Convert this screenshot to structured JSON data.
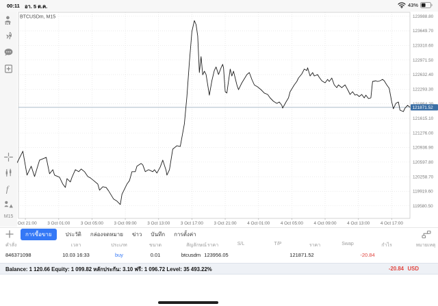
{
  "status_bar": {
    "time": "00:11",
    "date": "อา. 5 ต.ค.",
    "battery_percent": "43%"
  },
  "sidebar": {
    "icons": [
      "account-icon",
      "rocket-icon",
      "chat-icon",
      "new-order-icon",
      "crosshair-icon",
      "indicator-icon",
      "function-icon",
      "objects-icon"
    ],
    "timeframe": "M15"
  },
  "chart": {
    "symbol_label": "BTCUSDm, M15"
  },
  "chart_data": {
    "type": "line",
    "title": "BTCUSDm, M15",
    "xlabel": "",
    "ylabel": "Price",
    "grid": true,
    "xlim": [
      20.17,
      67.19
    ],
    "ylim": [
      119290,
      124080
    ],
    "x_unit": "hours since 2 Oct 00:00",
    "x_ticks": [
      {
        "t": 21,
        "label": "2 Oct 21:00"
      },
      {
        "t": 25,
        "label": "3 Oct 01:00"
      },
      {
        "t": 29,
        "label": "3 Oct 05:00"
      },
      {
        "t": 33,
        "label": "3 Oct 09:00"
      },
      {
        "t": 37,
        "label": "3 Oct 13:00"
      },
      {
        "t": 41,
        "label": "3 Oct 17:00"
      },
      {
        "t": 45,
        "label": "3 Oct 21:00"
      },
      {
        "t": 49,
        "label": "4 Oct 01:00"
      },
      {
        "t": 53,
        "label": "4 Oct 05:00"
      },
      {
        "t": 57,
        "label": "4 Oct 09:00"
      },
      {
        "t": 61,
        "label": "4 Oct 13:00"
      },
      {
        "t": 65,
        "label": "4 Oct 17:00"
      }
    ],
    "y_ticks": [
      123988.8,
      123649.7,
      123310.6,
      122971.5,
      122632.4,
      122293.3,
      121954.2,
      121615.1,
      121276.0,
      120936.9,
      120597.8,
      120258.7,
      119919.6,
      119580.5
    ],
    "current_price": 121871.52,
    "series": [
      {
        "name": "BTCUSDm M15 close",
        "points": [
          [
            20.0,
            120581
          ],
          [
            20.7,
            120851
          ],
          [
            21.2,
            120295
          ],
          [
            21.7,
            120502
          ],
          [
            22.1,
            120263
          ],
          [
            22.7,
            120645
          ],
          [
            23.5,
            120708
          ],
          [
            23.9,
            120327
          ],
          [
            24.3,
            120422
          ],
          [
            24.5,
            120295
          ],
          [
            25.1,
            120247
          ],
          [
            25.5,
            120088
          ],
          [
            25.8,
            120009
          ],
          [
            26.0,
            120215
          ],
          [
            26.4,
            120136
          ],
          [
            26.6,
            120247
          ],
          [
            27.0,
            120422
          ],
          [
            27.4,
            120375
          ],
          [
            27.7,
            120438
          ],
          [
            28.1,
            120375
          ],
          [
            28.5,
            120263
          ],
          [
            28.8,
            120232
          ],
          [
            29.2,
            120168
          ],
          [
            29.7,
            120088
          ],
          [
            29.9,
            119945
          ],
          [
            30.3,
            120025
          ],
          [
            30.7,
            120009
          ],
          [
            31.0,
            119929
          ],
          [
            31.6,
            119738
          ],
          [
            32.0,
            119691
          ],
          [
            32.4,
            119611
          ],
          [
            32.6,
            119850
          ],
          [
            33.0,
            120009
          ],
          [
            33.2,
            120088
          ],
          [
            33.5,
            120168
          ],
          [
            33.8,
            120375
          ],
          [
            34.2,
            120375
          ],
          [
            34.4,
            120502
          ],
          [
            34.9,
            120566
          ],
          [
            35.1,
            120534
          ],
          [
            35.4,
            120375
          ],
          [
            35.8,
            120422
          ],
          [
            36.3,
            120375
          ],
          [
            36.5,
            120422
          ],
          [
            36.8,
            120343
          ],
          [
            37.2,
            120486
          ],
          [
            37.5,
            120645
          ],
          [
            37.9,
            120406
          ],
          [
            38.0,
            120295
          ],
          [
            38.3,
            120422
          ],
          [
            38.7,
            120899
          ],
          [
            39.2,
            120978
          ],
          [
            39.6,
            120963
          ],
          [
            40.1,
            121487
          ],
          [
            40.4,
            122123
          ],
          [
            40.7,
            122918
          ],
          [
            41.0,
            123633
          ],
          [
            41.3,
            123888
          ],
          [
            41.5,
            123793
          ],
          [
            41.7,
            123528
          ],
          [
            41.9,
            122680
          ],
          [
            42.1,
            123050
          ],
          [
            42.3,
            122627
          ],
          [
            42.5,
            122712
          ],
          [
            42.7,
            122635
          ],
          [
            43.1,
            122155
          ],
          [
            43.4,
            122490
          ],
          [
            43.7,
            122730
          ],
          [
            43.9,
            122810
          ],
          [
            44.2,
            122635
          ],
          [
            44.5,
            122790
          ],
          [
            44.7,
            122870
          ],
          [
            44.8,
            122791
          ],
          [
            45.0,
            122234
          ],
          [
            45.2,
            122203
          ],
          [
            45.6,
            122760
          ],
          [
            45.8,
            122600
          ],
          [
            46.0,
            122712
          ],
          [
            46.4,
            122393
          ],
          [
            46.6,
            122282
          ],
          [
            47.0,
            122441
          ],
          [
            47.4,
            122568
          ],
          [
            47.6,
            122632
          ],
          [
            47.9,
            122680
          ],
          [
            48.2,
            122521
          ],
          [
            48.5,
            122393
          ],
          [
            48.9,
            122346
          ],
          [
            49.3,
            122282
          ],
          [
            49.7,
            122203
          ],
          [
            50.1,
            122171
          ],
          [
            50.4,
            122091
          ],
          [
            50.8,
            122012
          ],
          [
            51.2,
            121964
          ],
          [
            51.5,
            121996
          ],
          [
            51.8,
            121917
          ],
          [
            51.9,
            121853
          ],
          [
            52.3,
            121996
          ],
          [
            52.6,
            122091
          ],
          [
            52.8,
            122234
          ],
          [
            53.3,
            122393
          ],
          [
            53.6,
            122473
          ],
          [
            53.8,
            122552
          ],
          [
            54.2,
            122648
          ],
          [
            54.5,
            122760
          ],
          [
            54.8,
            122728
          ],
          [
            54.9,
            122791
          ],
          [
            55.2,
            122600
          ],
          [
            55.5,
            122680
          ],
          [
            55.7,
            122600
          ],
          [
            56.1,
            122632
          ],
          [
            56.3,
            122568
          ],
          [
            56.6,
            122489
          ],
          [
            57.0,
            122441
          ],
          [
            57.3,
            122521
          ],
          [
            57.5,
            122473
          ],
          [
            57.8,
            122552
          ],
          [
            58.1,
            122393
          ],
          [
            58.4,
            122330
          ],
          [
            58.6,
            122393
          ],
          [
            59.0,
            122330
          ],
          [
            59.4,
            122393
          ],
          [
            59.8,
            122250
          ],
          [
            60.0,
            122171
          ],
          [
            60.3,
            122234
          ],
          [
            60.6,
            122155
          ],
          [
            60.8,
            122171
          ],
          [
            61.1,
            122123
          ],
          [
            61.4,
            122171
          ],
          [
            61.7,
            122091
          ],
          [
            61.9,
            122155
          ],
          [
            62.2,
            122076
          ],
          [
            62.5,
            122091
          ],
          [
            62.7,
            122473
          ],
          [
            63.1,
            122489
          ],
          [
            63.3,
            122473
          ],
          [
            63.6,
            122489
          ],
          [
            63.9,
            122521
          ],
          [
            64.1,
            122489
          ],
          [
            64.4,
            122393
          ],
          [
            64.7,
            122314
          ],
          [
            65.0,
            121996
          ],
          [
            65.2,
            121837
          ],
          [
            65.5,
            121964
          ],
          [
            65.8,
            121996
          ],
          [
            66.0,
            121805
          ],
          [
            66.4,
            121773
          ],
          [
            66.6,
            121853
          ],
          [
            66.9,
            121917
          ],
          [
            67.2,
            121872
          ]
        ]
      }
    ],
    "legend": []
  },
  "tabs": {
    "items": [
      {
        "label": "การซื้อขาย",
        "selected": true
      },
      {
        "label": "ประวัติ",
        "selected": false
      },
      {
        "label": "กล่องจดหมาย",
        "selected": false
      },
      {
        "label": "ข่าว",
        "selected": false
      },
      {
        "label": "บันทึก",
        "selected": false
      },
      {
        "label": "การตั้งค่า",
        "selected": false
      }
    ]
  },
  "positions_table": {
    "headers": [
      "คำสั่ง",
      "เวลา",
      "ประเภท",
      "ขนาด",
      "สัญลักษณ์",
      "ราคา",
      "S/L",
      "T/P",
      "ราคา",
      "Swap",
      "กำไร",
      "หมายเหตุ"
    ],
    "rows": [
      [
        "846371098",
        "10.03 16:33",
        "buy",
        "0.01",
        "btcusdm",
        "123956.05",
        "",
        "",
        "121871.52",
        "",
        "-20.84",
        ""
      ]
    ]
  },
  "account_bar": {
    "summary": "Balance: 1 120.66 Equity: 1 099.82 หลักประกัน: 3.10 ฟรี: 1 096.72 Level: 35 493.22%",
    "profit": "-20.84",
    "currency": "USD"
  },
  "colors": {
    "accent_blue": "#3478f6",
    "loss_red": "#e0433d",
    "price_box_blue": "#3b6fa5",
    "chart_line": "#1c1c1c"
  }
}
